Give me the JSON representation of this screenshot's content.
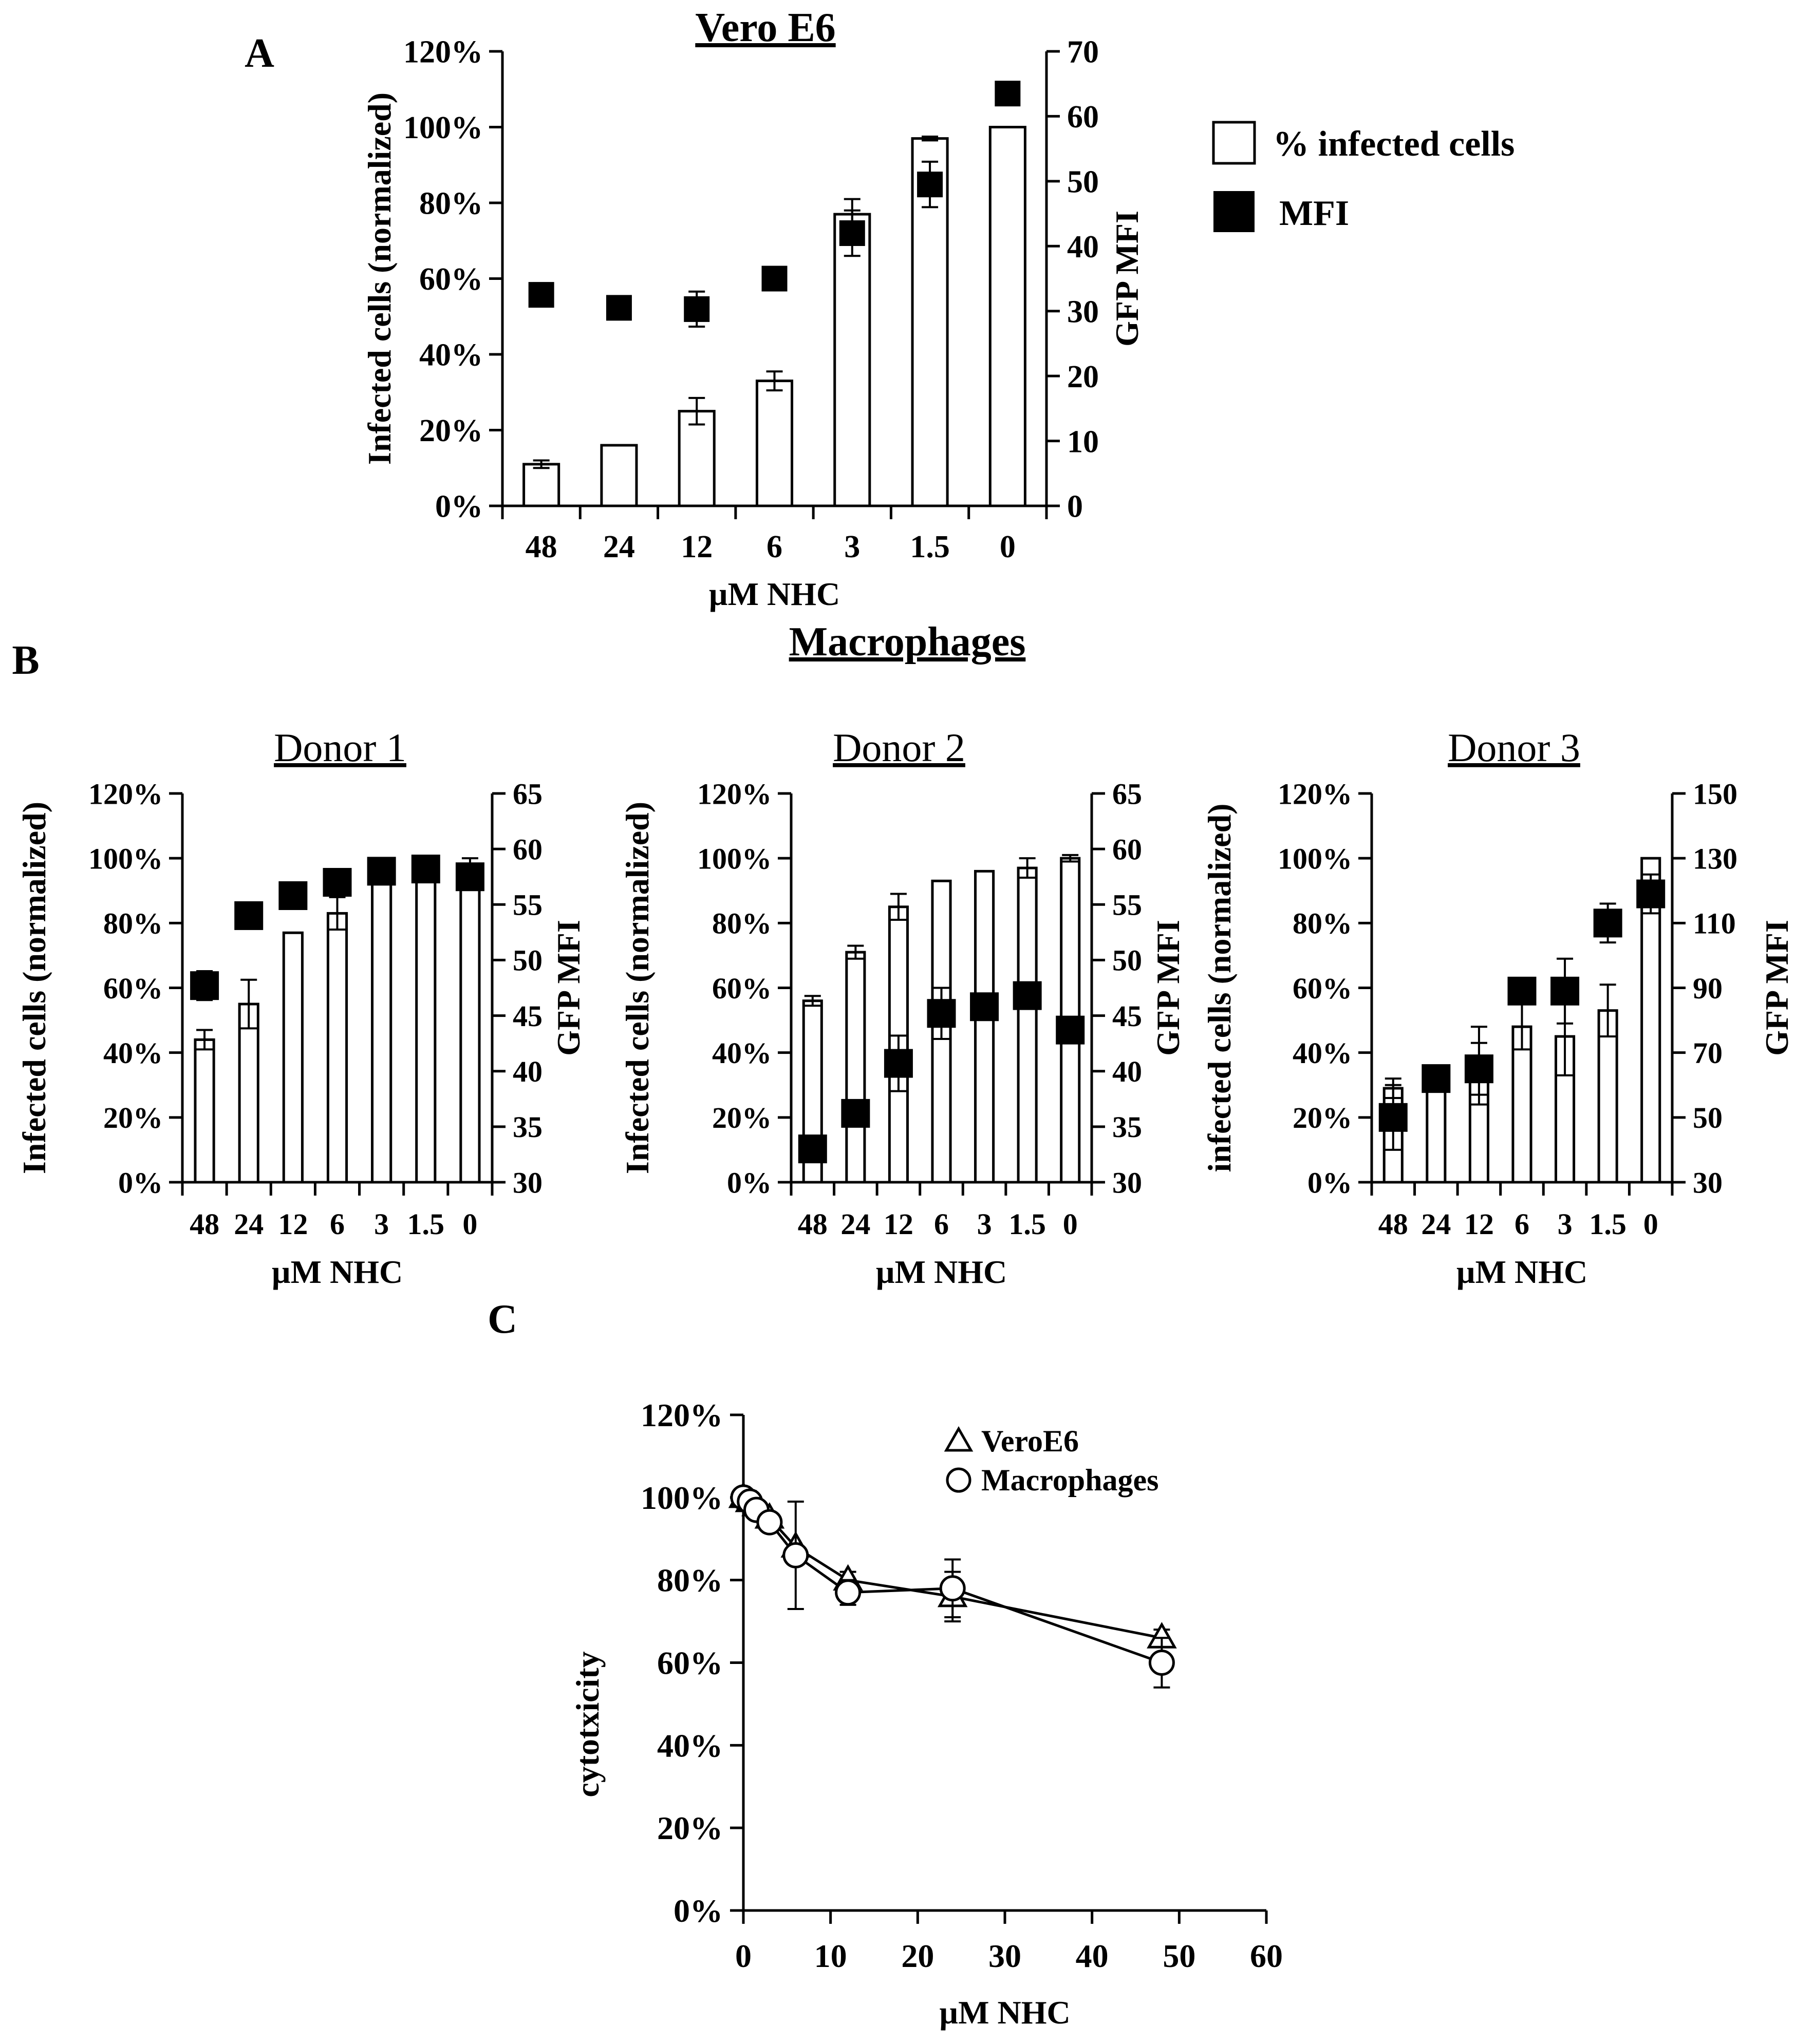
{
  "panel_labels": {
    "a": "A",
    "b": "B",
    "c": "C"
  },
  "section_b_title": "Macrophages",
  "colors": {
    "bar_fill": "#ffffff",
    "marker_fill": "#000000",
    "line": "#000000"
  },
  "legend_a": {
    "bar": "% infected cells",
    "marker": "MFI"
  },
  "legend_c": {
    "vero": "VeroE6",
    "macro": "Macrophages"
  },
  "chart_data": [
    {
      "id": "A",
      "type": "bar",
      "title": "Vero E6",
      "categories": [
        "48",
        "24",
        "12",
        "6",
        "3",
        "1.5",
        "0"
      ],
      "xlabel": "µM NHC",
      "ylabel": "Infected cells (normalized)",
      "y2label": "GFP MFI",
      "ylim": [
        0,
        120
      ],
      "y_ticks": [
        "0%",
        "20%",
        "40%",
        "60%",
        "80%",
        "100%",
        "120%"
      ],
      "y2lim": [
        0,
        70
      ],
      "y2_ticks": [
        "0",
        "10",
        "20",
        "30",
        "40",
        "50",
        "60",
        "70"
      ],
      "series": [
        {
          "name": "% infected cells",
          "kind": "bar",
          "axis": "left",
          "values": [
            11,
            16,
            25,
            33,
            77,
            97,
            100
          ],
          "errors": [
            1,
            0,
            3.5,
            2.5,
            4,
            0.5,
            0
          ]
        },
        {
          "name": "MFI",
          "kind": "marker",
          "axis": "right",
          "values": [
            32.5,
            30.5,
            30.3,
            35,
            42,
            49.5,
            63.5
          ],
          "errors": [
            1.8,
            0,
            2.7,
            0,
            3.5,
            3.5,
            0
          ]
        }
      ]
    },
    {
      "id": "B1",
      "type": "bar",
      "title": "Donor 1",
      "categories": [
        "48",
        "24",
        "12",
        "6",
        "3",
        "1.5",
        "0"
      ],
      "xlabel": "µM NHC",
      "ylabel": "Infected cells (normalized)",
      "y2label": "GFP MFI",
      "ylim": [
        0,
        120
      ],
      "y_ticks": [
        "0%",
        "20%",
        "40%",
        "60%",
        "80%",
        "100%",
        "120%"
      ],
      "y2lim": [
        30,
        65
      ],
      "y2_ticks": [
        "30",
        "35",
        "40",
        "45",
        "50",
        "55",
        "60",
        "65"
      ],
      "series": [
        {
          "name": "% infected cells",
          "kind": "bar",
          "axis": "left",
          "values": [
            44,
            55,
            77,
            83,
            96,
            97,
            97
          ],
          "errors": [
            3,
            7.5,
            0,
            5,
            1,
            0.5,
            3
          ]
        },
        {
          "name": "MFI",
          "kind": "marker",
          "axis": "right",
          "values": [
            47.7,
            54,
            55.8,
            57,
            58,
            58.2,
            57.5
          ],
          "errors": [
            1.3,
            0.8,
            1,
            0,
            0,
            0,
            0
          ]
        }
      ]
    },
    {
      "id": "B2",
      "type": "bar",
      "title": "Donor 2",
      "categories": [
        "48",
        "24",
        "12",
        "6",
        "3",
        "1.5",
        "0"
      ],
      "xlabel": "µM NHC",
      "ylabel": "Infected cells (normalized)",
      "y2label": "GFP MFI",
      "ylim": [
        0,
        120
      ],
      "y_ticks": [
        "0%",
        "20%",
        "40%",
        "60%",
        "80%",
        "100%",
        "120%"
      ],
      "y2lim": [
        30,
        65
      ],
      "y2_ticks": [
        "30",
        "35",
        "40",
        "45",
        "50",
        "55",
        "60",
        "65"
      ],
      "series": [
        {
          "name": "% infected cells",
          "kind": "bar",
          "axis": "left",
          "values": [
            56,
            71,
            85,
            93,
            96,
            97,
            100
          ],
          "errors": [
            1.5,
            2,
            4,
            0,
            0,
            3,
            1
          ]
        },
        {
          "name": "MFI",
          "kind": "marker",
          "axis": "right",
          "values": [
            33,
            36.2,
            40.7,
            45.2,
            45.8,
            46.8,
            43.7
          ],
          "errors": [
            0,
            0.8,
            2.5,
            2.3,
            0,
            0,
            0
          ]
        }
      ]
    },
    {
      "id": "B3",
      "type": "bar",
      "title": "Donor 3",
      "categories": [
        "48",
        "24",
        "12",
        "6",
        "3",
        "1.5",
        "0"
      ],
      "xlabel": "µM NHC",
      "ylabel": "infected cells (normalized)",
      "y2label": "GFP MFI",
      "ylim": [
        0,
        120
      ],
      "y_ticks": [
        "0%",
        "20%",
        "40%",
        "60%",
        "80%",
        "100%",
        "120%"
      ],
      "y2lim": [
        30,
        150
      ],
      "y2_ticks": [
        "30",
        "50",
        "70",
        "90",
        "110",
        "130",
        "150"
      ],
      "series": [
        {
          "name": "% infected cells",
          "kind": "bar",
          "axis": "left",
          "values": [
            29,
            32,
            36,
            48,
            45,
            53,
            100
          ],
          "errors": [
            3,
            0,
            12,
            7,
            12,
            8,
            0
          ]
        },
        {
          "name": "MFI",
          "kind": "marker",
          "axis": "right",
          "values": [
            50,
            62,
            65,
            89,
            89,
            110,
            119
          ],
          "errors": [
            10,
            0,
            8,
            0,
            10,
            6,
            6
          ]
        }
      ]
    },
    {
      "id": "C",
      "type": "line",
      "title": "",
      "xlabel": "µM NHC",
      "ylabel": "cytotxicity",
      "xlim": [
        0,
        60
      ],
      "x_ticks": [
        "0",
        "10",
        "20",
        "30",
        "40",
        "50",
        "60"
      ],
      "ylim": [
        0,
        120
      ],
      "y_ticks": [
        "0%",
        "20%",
        "40%",
        "60%",
        "80%",
        "100%",
        "120%"
      ],
      "series": [
        {
          "name": "VeroE6",
          "marker": "triangle",
          "x": [
            0,
            0.75,
            1.5,
            3,
            6,
            12,
            24,
            48
          ],
          "y": [
            100,
            99,
            98,
            95,
            88,
            80,
            76,
            66
          ],
          "errors": [
            0,
            0,
            0,
            0,
            0,
            2,
            6,
            2
          ]
        },
        {
          "name": "Macrophages",
          "marker": "circle",
          "x": [
            0,
            0.75,
            1.5,
            3,
            6,
            12,
            24,
            48
          ],
          "y": [
            100,
            99,
            97,
            94,
            86,
            77,
            78,
            60
          ],
          "errors": [
            0,
            0,
            0,
            0,
            13,
            3,
            7,
            6
          ]
        }
      ]
    }
  ]
}
